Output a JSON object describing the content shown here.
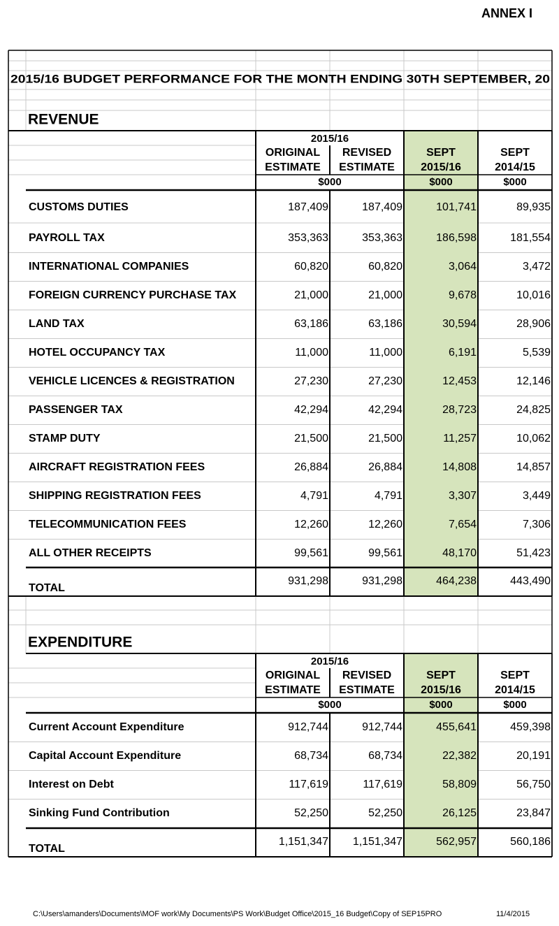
{
  "annex": "ANNEX I",
  "title": "2015/16 BUDGET PERFORMANCE FOR THE MONTH ENDING 30TH SEPTEMBER, 20",
  "revenue": {
    "heading": "REVENUE",
    "header": {
      "period": "2015/16",
      "columns": [
        [
          "ORIGINAL",
          "ESTIMATE"
        ],
        [
          "REVISED",
          "ESTIMATE"
        ],
        [
          "SEPT",
          "2015/16"
        ],
        [
          "SEPT",
          "2014/15"
        ]
      ],
      "units": [
        "$000",
        "$000",
        "$000"
      ]
    },
    "rows": [
      {
        "label": "CUSTOMS DUTIES",
        "values": [
          "187,409",
          "187,409",
          "101,741",
          "89,935"
        ]
      },
      {
        "label": "PAYROLL TAX",
        "values": [
          "353,363",
          "353,363",
          "186,598",
          "181,554"
        ]
      },
      {
        "label": "INTERNATIONAL COMPANIES",
        "values": [
          "60,820",
          "60,820",
          "3,064",
          "3,472"
        ]
      },
      {
        "label": "FOREIGN CURRENCY PURCHASE TAX",
        "values": [
          "21,000",
          "21,000",
          "9,678",
          "10,016"
        ]
      },
      {
        "label": "LAND TAX",
        "values": [
          "63,186",
          "63,186",
          "30,594",
          "28,906"
        ]
      },
      {
        "label": "HOTEL OCCUPANCY TAX",
        "values": [
          "11,000",
          "11,000",
          "6,191",
          "5,539"
        ]
      },
      {
        "label": "VEHICLE LICENCES & REGISTRATION",
        "values": [
          "27,230",
          "27,230",
          "12,453",
          "12,146"
        ]
      },
      {
        "label": "PASSENGER TAX",
        "values": [
          "42,294",
          "42,294",
          "28,723",
          "24,825"
        ]
      },
      {
        "label": "STAMP DUTY",
        "values": [
          "21,500",
          "21,500",
          "11,257",
          "10,062"
        ]
      },
      {
        "label": "AIRCRAFT REGISTRATION FEES",
        "values": [
          "26,884",
          "26,884",
          "14,808",
          "14,857"
        ]
      },
      {
        "label": "SHIPPING REGISTRATION FEES",
        "values": [
          "4,791",
          "4,791",
          "3,307",
          "3,449"
        ]
      },
      {
        "label": "TELECOMMUNICATION FEES",
        "values": [
          "12,260",
          "12,260",
          "7,654",
          "7,306"
        ]
      },
      {
        "label": "ALL OTHER RECEIPTS",
        "values": [
          "99,561",
          "99,561",
          "48,170",
          "51,423"
        ]
      }
    ],
    "total": {
      "label": "TOTAL",
      "values": [
        "931,298",
        "931,298",
        "464,238",
        "443,490"
      ]
    }
  },
  "expenditure": {
    "heading": "EXPENDITURE",
    "header": {
      "period": "2015/16",
      "columns": [
        [
          "ORIGINAL",
          "ESTIMATE"
        ],
        [
          "REVISED",
          "ESTIMATE"
        ],
        [
          "SEPT",
          "2015/16"
        ],
        [
          "SEPT",
          "2014/15"
        ]
      ],
      "units": [
        "$000",
        "$000",
        "$000"
      ]
    },
    "rows": [
      {
        "label": "Current Account Expenditure",
        "values": [
          "912,744",
          "912,744",
          "455,641",
          "459,398"
        ]
      },
      {
        "label": "Capital Account Expenditure",
        "values": [
          "68,734",
          "68,734",
          "22,382",
          "20,191"
        ]
      },
      {
        "label": "Interest on Debt",
        "values": [
          "117,619",
          "117,619",
          "58,809",
          "56,750"
        ]
      },
      {
        "label": "Sinking Fund Contribution",
        "values": [
          "52,250",
          "52,250",
          "26,125",
          "23,847"
        ]
      }
    ],
    "total": {
      "label": "TOTAL",
      "values": [
        "1,151,347",
        "1,151,347",
        "562,957",
        "560,186"
      ]
    }
  },
  "footer": {
    "path": "C:\\Users\\amanders\\Documents\\MOF work\\My Documents\\PS Work\\Budget Office\\2015_16 Budget\\Copy of SEP15PRO",
    "date": "11/4/2015"
  }
}
